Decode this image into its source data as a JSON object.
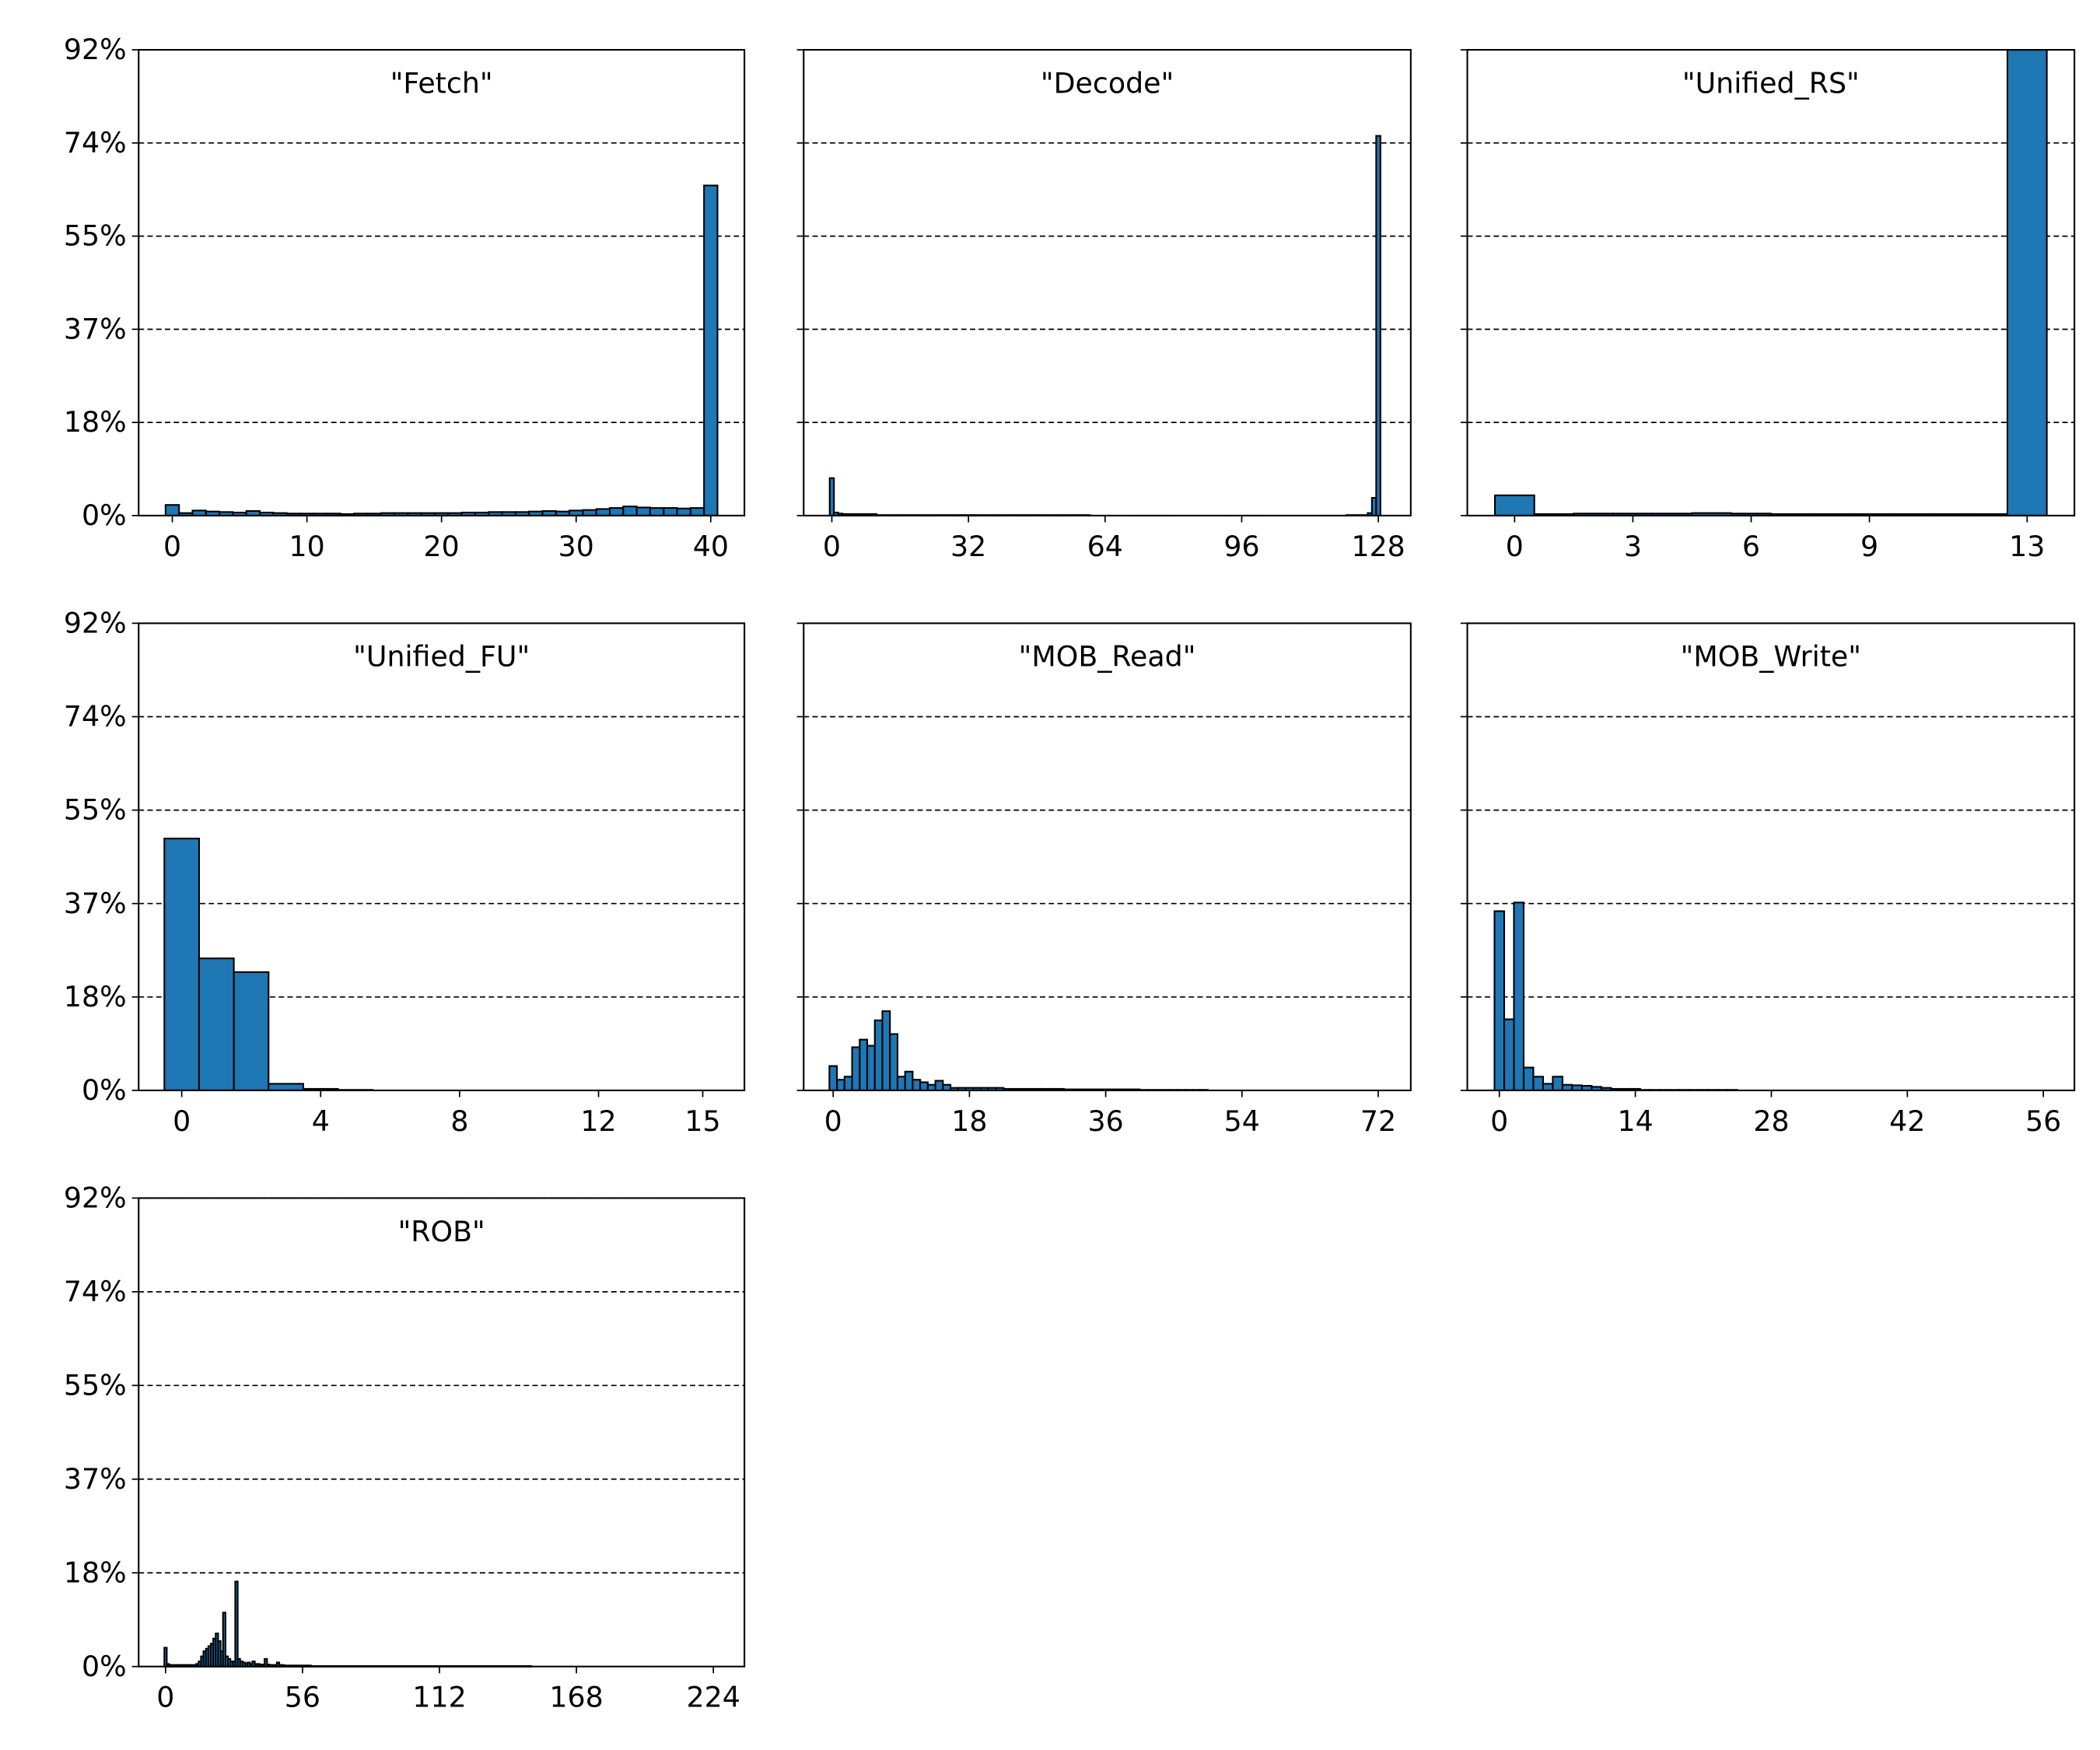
{
  "chart_data": [
    {
      "type": "histogram",
      "title": "\"Fetch\"",
      "color": "#1f77b4",
      "edgecolor": "#000000",
      "grid": true,
      "bins": [
        -0.5,
        0.5,
        1.5,
        2.5,
        3.5,
        4.5,
        5.5,
        6.5,
        7.5,
        8.5,
        9.5,
        10.5,
        11.5,
        12.5,
        13.5,
        14.5,
        15.5,
        16.5,
        17.5,
        18.5,
        19.5,
        20.5,
        21.5,
        22.5,
        23.5,
        24.5,
        25.5,
        26.5,
        27.5,
        28.5,
        29.5,
        30.5,
        31.5,
        32.5,
        33.5,
        34.5,
        35.5,
        36.5,
        37.5,
        38.5,
        39.5,
        40.5
      ],
      "values": [
        2.1,
        0.5,
        1.0,
        0.8,
        0.7,
        0.6,
        0.9,
        0.6,
        0.5,
        0.4,
        0.4,
        0.4,
        0.4,
        0.3,
        0.4,
        0.4,
        0.5,
        0.5,
        0.5,
        0.5,
        0.5,
        0.5,
        0.6,
        0.6,
        0.7,
        0.7,
        0.7,
        0.8,
        0.9,
        0.8,
        1.0,
        1.1,
        1.3,
        1.5,
        1.8,
        1.6,
        1.5,
        1.5,
        1.4,
        1.5,
        65.2
      ],
      "xlim": [
        -2.5,
        42.5
      ],
      "xticks": [
        0,
        10,
        20,
        30,
        40
      ],
      "ylim": [
        0,
        92
      ],
      "yticks": [
        {
          "value": 0,
          "label": "0%"
        },
        {
          "value": 18.4,
          "label": "18%"
        },
        {
          "value": 36.8,
          "label": "37%"
        },
        {
          "value": 55.2,
          "label": "55%"
        },
        {
          "value": 73.6,
          "label": "74%"
        },
        {
          "value": 92,
          "label": "92%"
        }
      ]
    },
    {
      "type": "histogram",
      "title": "\"Decode\"",
      "color": "#1f77b4",
      "edgecolor": "#000000",
      "grid": true,
      "bins": [
        -0.5,
        0.5,
        1.5,
        2.5,
        3.5,
        4.5,
        5.5,
        6.5,
        7.5,
        8.5,
        9.5,
        10.5,
        11.5,
        12.5,
        13.5,
        14.5,
        15.5,
        16.5,
        17.5,
        18.5,
        19.5,
        20.5,
        21.5,
        22.5,
        23.5,
        24.5,
        25.5,
        26.5,
        27.5,
        28.5,
        29.5,
        30.5,
        31.5,
        32.5,
        33.5,
        34.5,
        35.5,
        36.5,
        37.5,
        38.5,
        39.5,
        40.5,
        41.5,
        42.5,
        43.5,
        44.5,
        45.5,
        46.5,
        47.5,
        48.5,
        49.5,
        50.5,
        51.5,
        52.5,
        53.5,
        54.5,
        55.5,
        56.5,
        57.5,
        58.5,
        59.5,
        60.5,
        61.5,
        62.5,
        63.5,
        64.5,
        65.5,
        66.5,
        67.5,
        68.5,
        69.5,
        70.5,
        71.5,
        72.5,
        73.5,
        74.5,
        75.5,
        76.5,
        77.5,
        78.5,
        79.5,
        80.5,
        81.5,
        82.5,
        83.5,
        84.5,
        85.5,
        86.5,
        87.5,
        88.5,
        89.5,
        90.5,
        91.5,
        92.5,
        93.5,
        94.5,
        95.5,
        96.5,
        97.5,
        98.5,
        99.5,
        100.5,
        101.5,
        102.5,
        103.5,
        104.5,
        105.5,
        106.5,
        107.5,
        108.5,
        109.5,
        110.5,
        111.5,
        112.5,
        113.5,
        114.5,
        115.5,
        116.5,
        117.5,
        118.5,
        119.5,
        120.5,
        121.5,
        122.5,
        123.5,
        124.5,
        125.5,
        126.5,
        127.5,
        128.5
      ],
      "values": [
        7.4,
        0.6,
        0.4,
        0.3,
        0.3,
        0.3,
        0.3,
        0.3,
        0.3,
        0.3,
        0.3,
        0.1,
        0.1,
        0.1,
        0.1,
        0.1,
        0.1,
        0.1,
        0.1,
        0.1,
        0.1,
        0.1,
        0.1,
        0.1,
        0.1,
        0.1,
        0.1,
        0.1,
        0.1,
        0.1,
        0.1,
        0.1,
        0.1,
        0.1,
        0.1,
        0.1,
        0.1,
        0.1,
        0.1,
        0.1,
        0.1,
        0.1,
        0.1,
        0.1,
        0.1,
        0.1,
        0.1,
        0.1,
        0.1,
        0.1,
        0.1,
        0.1,
        0.1,
        0.1,
        0.1,
        0.1,
        0.1,
        0.1,
        0.1,
        0.1,
        0.1,
        0,
        0,
        0,
        0,
        0,
        0,
        0,
        0,
        0,
        0,
        0,
        0,
        0,
        0,
        0,
        0,
        0,
        0,
        0,
        0,
        0,
        0,
        0,
        0,
        0,
        0,
        0,
        0,
        0,
        0,
        0,
        0,
        0,
        0,
        0,
        0,
        0,
        0,
        0,
        0,
        0,
        0,
        0,
        0,
        0,
        0,
        0,
        0,
        0,
        0,
        0,
        0,
        0,
        0,
        0,
        0,
        0,
        0,
        0,
        0,
        0.1,
        0.1,
        0.1,
        0.1,
        0.1,
        0.5,
        3.5,
        75.0
      ],
      "xlim": [
        -6.6,
        135.6
      ],
      "xticks": [
        0,
        32,
        64,
        96,
        128
      ],
      "ylim": [
        0,
        92
      ],
      "yticks": [
        0,
        18.4,
        36.8,
        55.2,
        73.6,
        92
      ]
    },
    {
      "type": "histogram",
      "title": "\"Unified_RS\"",
      "color": "#1f77b4",
      "edgecolor": "#000000",
      "grid": true,
      "bins": [
        -0.5,
        0.5,
        1.5,
        2.5,
        3.5,
        4.5,
        5.5,
        6.5,
        7.5,
        8.5,
        9.5,
        10.5,
        11.5,
        12.5,
        13.5
      ],
      "values": [
        4.0,
        0.3,
        0.4,
        0.4,
        0.4,
        0.5,
        0.4,
        0.3,
        0.3,
        0.3,
        0.3,
        0.3,
        0.3,
        92.0
      ],
      "xlim": [
        -1.2,
        14.2
      ],
      "xticks": [
        0,
        3,
        6,
        9,
        13
      ],
      "ylim": [
        0,
        92
      ],
      "yticks": [
        0,
        18.4,
        36.8,
        55.2,
        73.6,
        92
      ]
    },
    {
      "type": "histogram",
      "title": "\"Unified_FU\"",
      "color": "#1f77b4",
      "edgecolor": "#000000",
      "grid": true,
      "bins": [
        -0.5,
        0.5,
        1.5,
        2.5,
        3.5,
        4.5,
        5.5,
        6.5,
        7.5,
        8.5,
        9.5,
        10.5,
        11.5,
        12.5,
        13.5,
        14.5,
        15.5
      ],
      "values": [
        49.6,
        26.0,
        23.3,
        1.3,
        0.3,
        0.1,
        0,
        0,
        0,
        0,
        0,
        0,
        0,
        0,
        0,
        0
      ],
      "xlim": [
        -1.24,
        16.2
      ],
      "xticks": [
        0,
        4,
        8,
        12,
        15
      ],
      "ylim": [
        0,
        92
      ],
      "yticks": [
        {
          "value": 0,
          "label": "0%"
        },
        {
          "value": 18.4,
          "label": "18%"
        },
        {
          "value": 36.8,
          "label": "37%"
        },
        {
          "value": 55.2,
          "label": "55%"
        },
        {
          "value": 73.6,
          "label": "74%"
        },
        {
          "value": 92,
          "label": "92%"
        }
      ]
    },
    {
      "type": "histogram",
      "title": "\"MOB_Read\"",
      "color": "#1f77b4",
      "edgecolor": "#000000",
      "grid": true,
      "bins": [
        -0.5,
        0.5,
        1.5,
        2.5,
        3.5,
        4.5,
        5.5,
        6.5,
        7.5,
        8.5,
        9.5,
        10.5,
        11.5,
        12.5,
        13.5,
        14.5,
        15.5,
        16.5,
        17.5,
        18.5,
        19.5,
        20.5,
        21.5,
        22.5,
        23.5,
        24.5,
        25.5,
        26.5,
        27.5,
        28.5,
        29.5,
        30.5,
        31.5,
        32.5,
        33.5,
        34.5,
        35.5,
        36.5,
        37.5,
        38.5,
        39.5,
        40.5,
        41.5,
        42.5,
        43.5,
        44.5,
        45.5,
        46.5,
        47.5,
        48.5,
        49.5,
        50.5,
        51.5,
        52.5,
        53.5,
        54.5,
        55.5,
        56.5,
        57.5,
        58.5,
        59.5,
        60.5,
        61.5,
        62.5,
        63.5,
        64.5,
        65.5,
        66.5,
        67.5,
        68.5,
        69.5,
        70.5,
        71.5,
        72.5
      ],
      "values": [
        4.8,
        2.1,
        2.7,
        8.5,
        10.0,
        8.8,
        13.8,
        15.6,
        11.1,
        2.7,
        3.7,
        2.1,
        1.6,
        1.1,
        1.9,
        1.1,
        0.5,
        0.5,
        0.5,
        0.5,
        0.5,
        0.5,
        0.5,
        0.3,
        0.3,
        0.3,
        0.3,
        0.3,
        0.3,
        0.3,
        0.3,
        0.2,
        0.2,
        0.2,
        0.2,
        0.2,
        0.2,
        0.2,
        0.2,
        0.2,
        0.2,
        0.1,
        0.1,
        0.1,
        0.1,
        0.1,
        0.1,
        0.1,
        0.1,
        0.1,
        0,
        0,
        0,
        0,
        0,
        0,
        0,
        0,
        0,
        0,
        0,
        0,
        0,
        0,
        0,
        0,
        0,
        0,
        0,
        0,
        0,
        0,
        0
      ],
      "xlim": [
        -3.9,
        76.3
      ],
      "xticks": [
        0,
        18,
        36,
        54,
        72
      ],
      "ylim": [
        0,
        92
      ],
      "yticks": [
        0,
        18.4,
        36.8,
        55.2,
        73.6,
        92
      ]
    },
    {
      "type": "histogram",
      "title": "\"MOB_Write\"",
      "color": "#1f77b4",
      "edgecolor": "#000000",
      "grid": true,
      "bins": [
        -0.5,
        0.5,
        1.5,
        2.5,
        3.5,
        4.5,
        5.5,
        6.5,
        7.5,
        8.5,
        9.5,
        10.5,
        11.5,
        12.5,
        13.5,
        14.5,
        15.5,
        16.5,
        17.5,
        18.5,
        19.5,
        20.5,
        21.5,
        22.5,
        23.5,
        24.5,
        25.5,
        26.5,
        27.5,
        28.5,
        29.5,
        30.5,
        31.5,
        32.5,
        33.5,
        34.5,
        35.5,
        36.5,
        37.5,
        38.5,
        39.5,
        40.5,
        41.5,
        42.5,
        43.5,
        44.5,
        45.5,
        46.5,
        47.5,
        48.5,
        49.5,
        50.5,
        51.5,
        52.5,
        53.5,
        54.5,
        55.5,
        56.5
      ],
      "values": [
        35.3,
        14.0,
        37.0,
        4.5,
        2.7,
        1.3,
        2.7,
        1.1,
        1.0,
        0.9,
        0.7,
        0.5,
        0.3,
        0.3,
        0.3,
        0.1,
        0.1,
        0.1,
        0.1,
        0.1,
        0.1,
        0.1,
        0.1,
        0.1,
        0.1,
        0,
        0,
        0,
        0,
        0,
        0,
        0,
        0,
        0,
        0,
        0,
        0,
        0,
        0,
        0,
        0,
        0,
        0,
        0,
        0,
        0,
        0,
        0,
        0,
        0,
        0,
        0,
        0,
        0,
        0,
        0,
        0
      ],
      "xlim": [
        -3.3,
        59.2
      ],
      "xticks": [
        0,
        14,
        28,
        42,
        56
      ],
      "ylim": [
        0,
        92
      ],
      "yticks": [
        0,
        18.4,
        36.8,
        55.2,
        73.6,
        92
      ]
    },
    {
      "type": "histogram",
      "title": "\"ROB\"",
      "color": "#1f77b4",
      "edgecolor": "#000000",
      "grid": true,
      "bins": [
        -0.5,
        0.5,
        1.5,
        2.5,
        3.5,
        4.5,
        5.5,
        6.5,
        7.5,
        8.5,
        9.5,
        10.5,
        11.5,
        12.5,
        13.5,
        14.5,
        15.5,
        16.5,
        17.5,
        18.5,
        19.5,
        20.5,
        21.5,
        22.5,
        23.5,
        24.5,
        25.5,
        26.5,
        27.5,
        28.5,
        29.5,
        30.5,
        31.5,
        32.5,
        33.5,
        34.5,
        35.5,
        36.5,
        37.5,
        38.5,
        39.5,
        40.5,
        41.5,
        42.5,
        43.5,
        44.5,
        45.5,
        46.5,
        47.5,
        48.5,
        49.5,
        50.5,
        51.5,
        52.5,
        53.5,
        54.5,
        55.5,
        56.5,
        57.5,
        58.5,
        59.5,
        60.5,
        61.5,
        62.5,
        63.5,
        64.5,
        65.5,
        66.5,
        67.5,
        68.5,
        69.5,
        70.5,
        71.5,
        72.5,
        73.5,
        74.5,
        75.5,
        76.5,
        77.5,
        78.5,
        79.5,
        80.5,
        81.5,
        82.5,
        83.5,
        84.5,
        85.5,
        86.5,
        87.5,
        88.5,
        89.5,
        90.5,
        91.5,
        92.5,
        93.5,
        94.5,
        95.5,
        96.5,
        97.5,
        98.5,
        99.5,
        100.5,
        101.5,
        102.5,
        103.5,
        104.5,
        105.5,
        106.5,
        107.5,
        108.5,
        109.5,
        110.5,
        111.5,
        112.5,
        113.5,
        114.5,
        115.5,
        116.5,
        117.5,
        118.5,
        119.5,
        120.5,
        121.5,
        122.5,
        123.5,
        124.5,
        125.5,
        126.5,
        127.5,
        128.5,
        129.5,
        130.5,
        131.5,
        132.5,
        133.5,
        134.5,
        135.5,
        136.5,
        137.5,
        138.5,
        139.5,
        140.5,
        141.5,
        142.5,
        143.5,
        144.5,
        145.5,
        146.5,
        147.5,
        148.5,
        149.5,
        150.5,
        151.5,
        152.5,
        153.5,
        154.5,
        155.5,
        156.5,
        157.5,
        158.5,
        159.5,
        160.5,
        161.5,
        162.5,
        163.5,
        164.5,
        165.5,
        166.5,
        167.5,
        168.5,
        169.5,
        170.5,
        171.5,
        172.5,
        173.5,
        174.5,
        175.5,
        176.5,
        177.5,
        178.5,
        179.5,
        180.5,
        181.5,
        182.5,
        183.5,
        184.5,
        185.5,
        186.5,
        187.5,
        188.5,
        189.5,
        190.5,
        191.5,
        192.5,
        193.5,
        194.5,
        195.5,
        196.5,
        197.5,
        198.5,
        199.5,
        200.5,
        201.5,
        202.5,
        203.5,
        204.5,
        205.5,
        206.5,
        207.5,
        208.5,
        209.5,
        210.5,
        211.5,
        212.5,
        213.5,
        214.5,
        215.5,
        216.5,
        217.5,
        218.5,
        219.5,
        220.5,
        221.5,
        222.5,
        223.5,
        224.5
      ],
      "values": [
        3.7,
        0.5,
        0.3,
        0.3,
        0.3,
        0.3,
        0.3,
        0.3,
        0.3,
        0.3,
        0.3,
        0.3,
        0.3,
        0.5,
        1.0,
        2.0,
        3.0,
        3.5,
        4.0,
        4.5,
        5.5,
        6.5,
        5.0,
        3.0,
        10.6,
        2.0,
        1.5,
        1.0,
        1.0,
        16.7,
        1.5,
        1.0,
        0.8,
        0.6,
        0.8,
        0.5,
        1.0,
        0.5,
        0.5,
        0.4,
        0.4,
        1.5,
        0.4,
        0.3,
        0.3,
        0.3,
        0.8,
        0.3,
        0.3,
        0.2,
        0.2,
        0.2,
        0.2,
        0.2,
        0.2,
        0.2,
        0.2,
        0.2,
        0.2,
        0.2,
        0.1,
        0.1,
        0.1,
        0.1,
        0.1,
        0.1,
        0.1,
        0.1,
        0.1,
        0.1,
        0.1,
        0.1,
        0.1,
        0.1,
        0.1,
        0.1,
        0.1,
        0.1,
        0.1,
        0.1,
        0.1,
        0.1,
        0.1,
        0.1,
        0.1,
        0.1,
        0.1,
        0.1,
        0.1,
        0.1,
        0.1,
        0.1,
        0.1,
        0.1,
        0.1,
        0.1,
        0.1,
        0.1,
        0.1,
        0.1,
        0.1,
        0.1,
        0.1,
        0.1,
        0.1,
        0.1,
        0.1,
        0.1,
        0.1,
        0.1,
        0.1,
        0.1,
        0.1,
        0.1,
        0.1,
        0.1,
        0.1,
        0.1,
        0.1,
        0.1,
        0.1,
        0.1,
        0.1,
        0.1,
        0.1,
        0.1,
        0.1,
        0.1,
        0.1,
        0.1,
        0.1,
        0.1,
        0.1,
        0.1,
        0.1,
        0.1,
        0.1,
        0.1,
        0.1,
        0.1,
        0.1,
        0.1,
        0.1,
        0.1,
        0.1,
        0.1,
        0.1,
        0.1,
        0.1,
        0.1,
        0,
        0,
        0,
        0,
        0,
        0,
        0,
        0,
        0,
        0,
        0,
        0,
        0,
        0,
        0,
        0,
        0,
        0,
        0,
        0,
        0,
        0,
        0,
        0,
        0,
        0,
        0,
        0,
        0,
        0,
        0,
        0,
        0,
        0,
        0,
        0,
        0,
        0,
        0,
        0,
        0,
        0,
        0,
        0,
        0,
        0,
        0,
        0,
        0,
        0,
        0,
        0,
        0,
        0,
        0,
        0,
        0,
        0,
        0,
        0,
        0,
        0,
        0,
        0,
        0,
        0,
        0,
        0,
        0,
        0,
        0,
        0,
        0,
        0,
        0
      ],
      "xlim": [
        -11,
        236.7
      ],
      "xticks": [
        0,
        56,
        112,
        168,
        224
      ],
      "ylim": [
        0,
        92
      ],
      "yticks": [
        {
          "value": 0,
          "label": "0%"
        },
        {
          "value": 18.4,
          "label": "18%"
        },
        {
          "value": 36.8,
          "label": "37%"
        },
        {
          "value": 55.2,
          "label": "55%"
        },
        {
          "value": 73.6,
          "label": "74%"
        },
        {
          "value": 92,
          "label": "92%"
        }
      ]
    }
  ]
}
